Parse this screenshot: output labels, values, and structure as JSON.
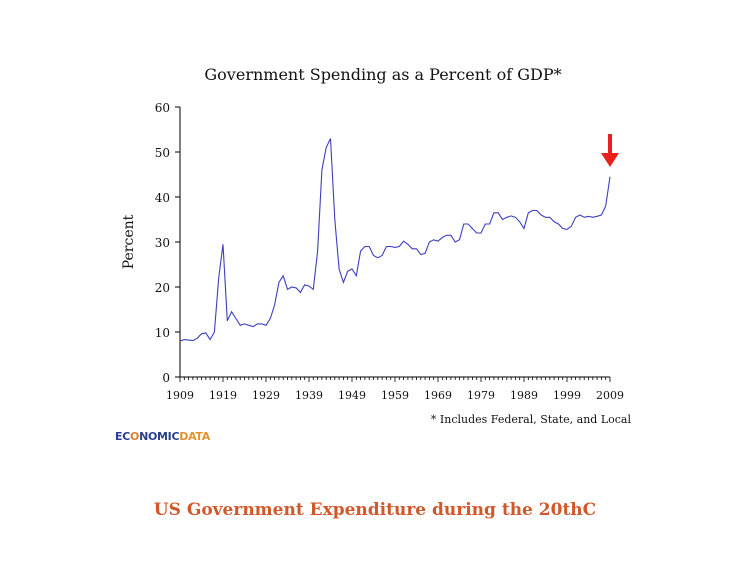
{
  "chart_data": {
    "type": "line",
    "title": "Government Spending as a Percent of GDP*",
    "ylabel": "Percent",
    "xlabel": "",
    "footnote": "* Includes Federal, State, and Local",
    "xlim": [
      1909,
      2009
    ],
    "ylim": [
      0,
      60
    ],
    "yticks": [
      0,
      10,
      20,
      30,
      40,
      50,
      60
    ],
    "xticks": [
      1909,
      1919,
      1929,
      1939,
      1949,
      1959,
      1969,
      1979,
      1989,
      1999,
      2009
    ],
    "grid": false,
    "line_color": "#3b3fbf",
    "annotation": {
      "type": "arrow",
      "color": "#e8211c",
      "at_year": 2009
    },
    "x": [
      1909,
      1910,
      1911,
      1912,
      1913,
      1914,
      1915,
      1916,
      1917,
      1918,
      1919,
      1920,
      1921,
      1922,
      1923,
      1924,
      1925,
      1926,
      1927,
      1928,
      1929,
      1930,
      1931,
      1932,
      1933,
      1934,
      1935,
      1936,
      1937,
      1938,
      1939,
      1940,
      1941,
      1942,
      1943,
      1944,
      1945,
      1946,
      1947,
      1948,
      1949,
      1950,
      1951,
      1952,
      1953,
      1954,
      1955,
      1956,
      1957,
      1958,
      1959,
      1960,
      1961,
      1962,
      1963,
      1964,
      1965,
      1966,
      1967,
      1968,
      1969,
      1970,
      1971,
      1972,
      1973,
      1974,
      1975,
      1976,
      1977,
      1978,
      1979,
      1980,
      1981,
      1982,
      1983,
      1984,
      1985,
      1986,
      1987,
      1988,
      1989,
      1990,
      1991,
      1992,
      1993,
      1994,
      1995,
      1996,
      1997,
      1998,
      1999,
      2000,
      2001,
      2002,
      2003,
      2004,
      2005,
      2006,
      2007,
      2008,
      2009
    ],
    "y": [
      8.0,
      8.3,
      8.2,
      8.1,
      8.6,
      9.6,
      9.8,
      8.3,
      10.0,
      22.0,
      29.5,
      12.5,
      14.5,
      13.0,
      11.5,
      11.8,
      11.5,
      11.2,
      11.8,
      11.8,
      11.5,
      13.0,
      16.0,
      21.0,
      22.5,
      19.5,
      20.0,
      19.8,
      18.8,
      20.5,
      20.2,
      19.5,
      28.0,
      46.0,
      51.0,
      53.0,
      35.0,
      24.0,
      21.0,
      23.5,
      24.0,
      22.5,
      28.0,
      29.0,
      29.0,
      27.0,
      26.5,
      27.0,
      29.0,
      29.0,
      28.8,
      29.0,
      30.2,
      29.5,
      28.5,
      28.5,
      27.2,
      27.5,
      30.0,
      30.5,
      30.2,
      31.0,
      31.5,
      31.5,
      30.0,
      30.5,
      34.0,
      34.0,
      33.0,
      32.0,
      32.0,
      34.0,
      34.0,
      36.5,
      36.5,
      35.0,
      35.5,
      35.8,
      35.5,
      34.5,
      33.0,
      36.5,
      37.0,
      37.0,
      36.0,
      35.5,
      35.5,
      34.5,
      34.0,
      33.0,
      32.8,
      33.5,
      35.5,
      36.0,
      35.5,
      35.7,
      35.5,
      35.7,
      36.0,
      38.0,
      44.5
    ]
  },
  "footer": {
    "logo": {
      "prefix": "EC",
      "o": "O",
      "middle": "NOMIC",
      "data": "DATA"
    },
    "caption": "US Government Expenditure during the 20thC"
  }
}
